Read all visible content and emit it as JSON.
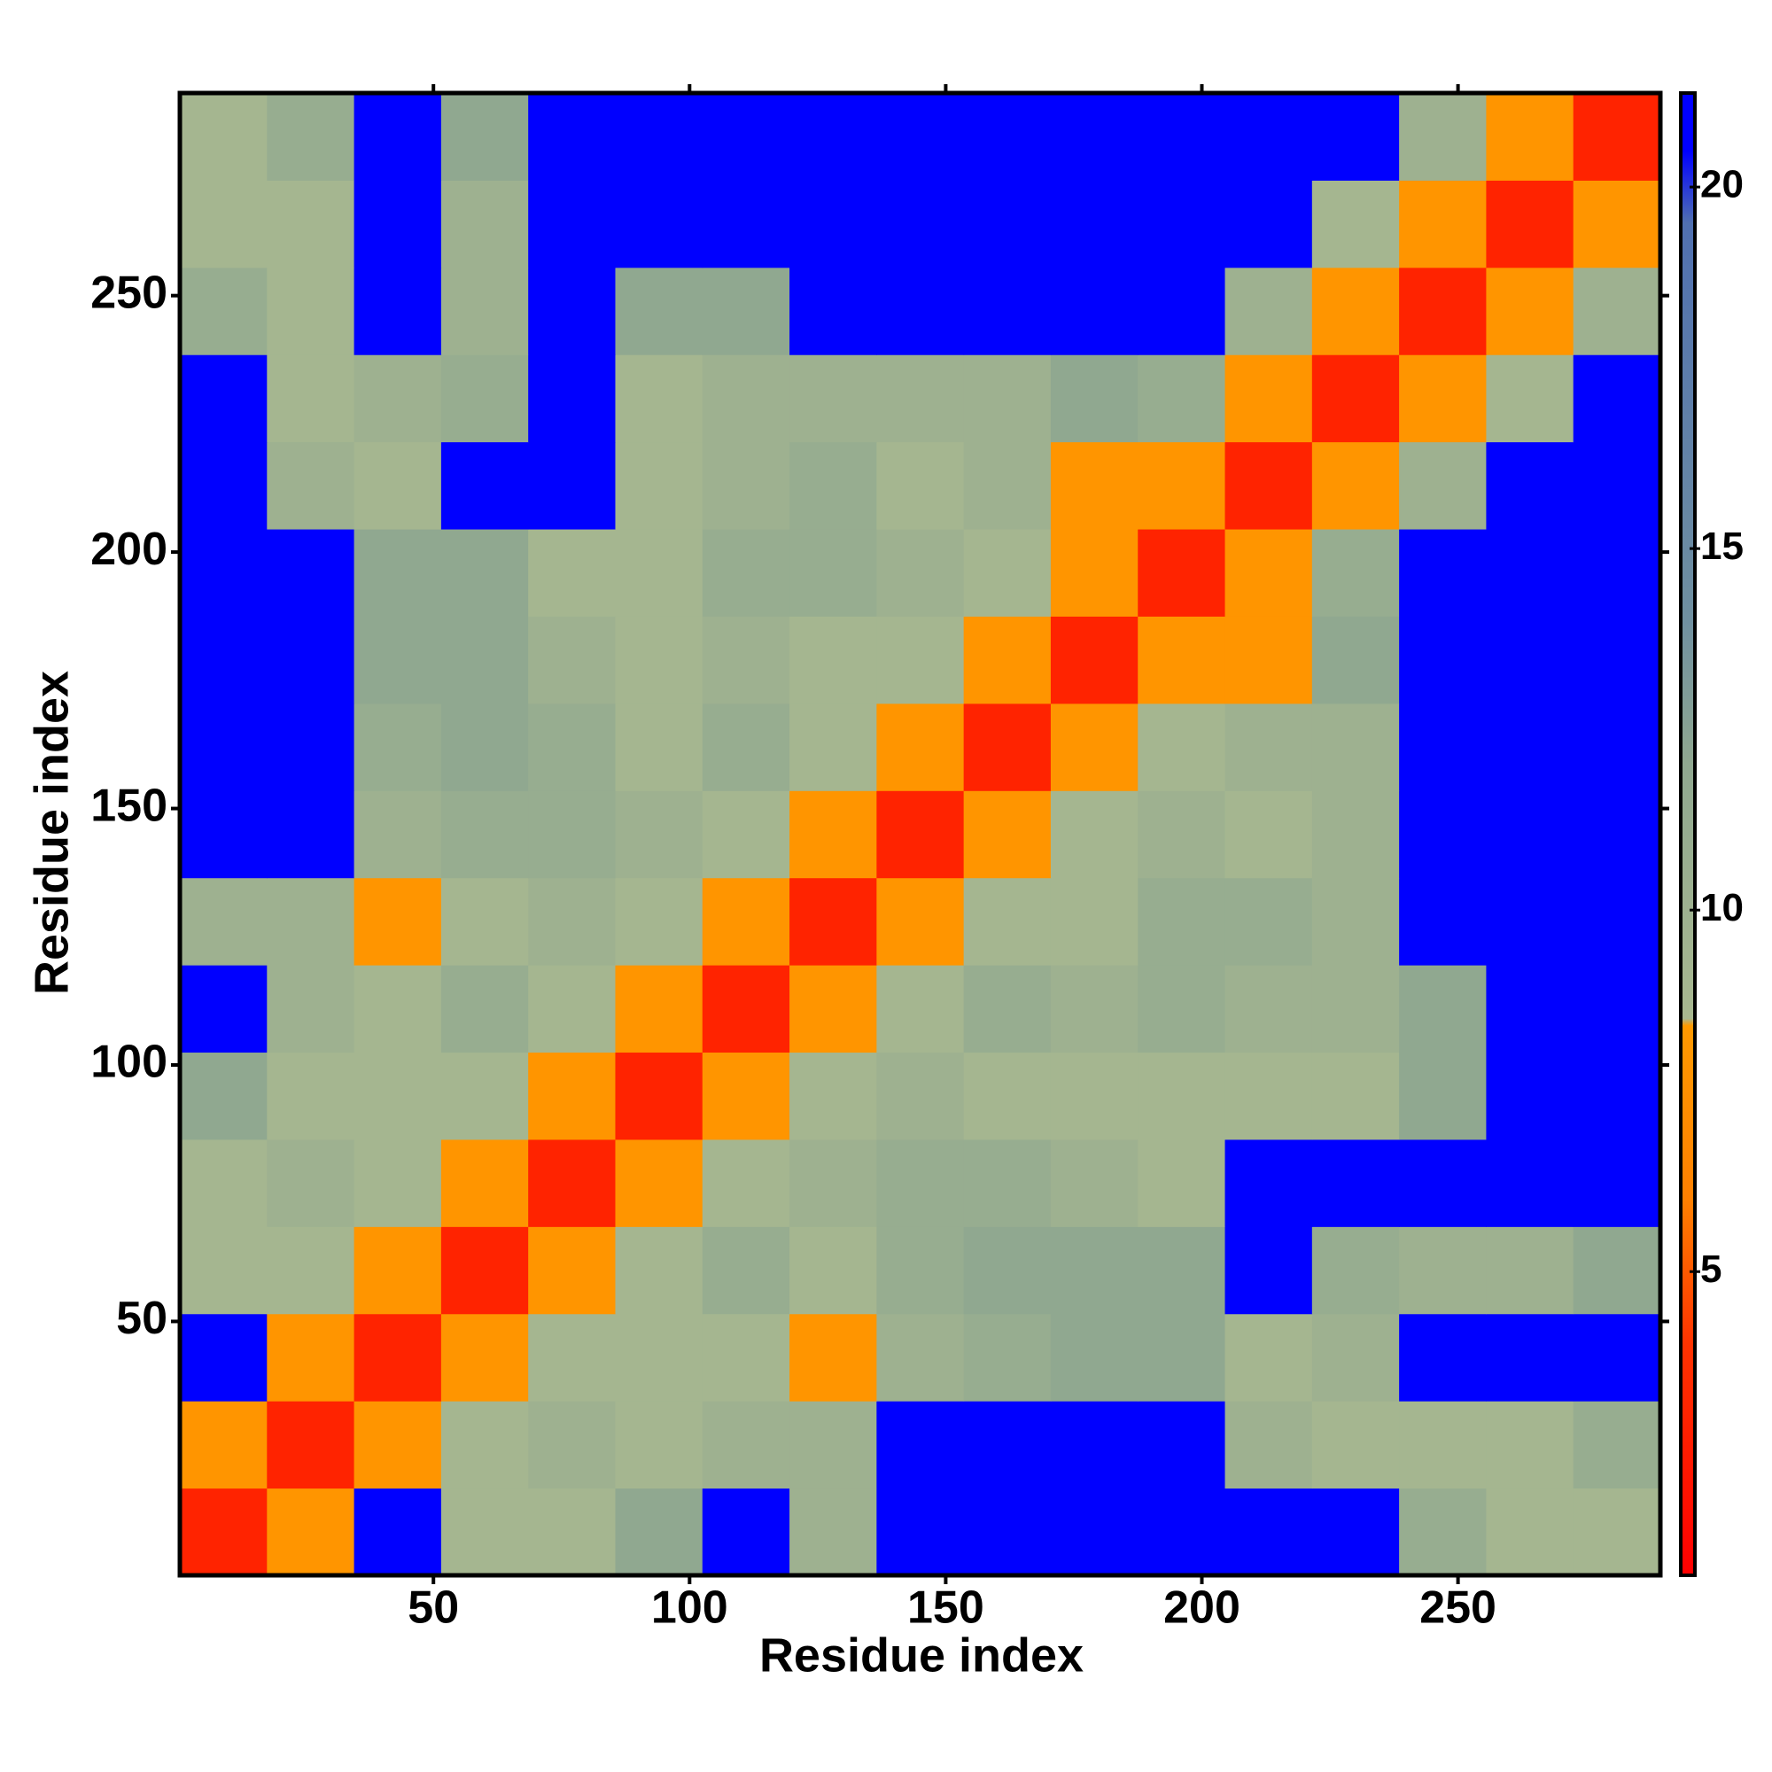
{
  "chart_data": {
    "type": "heatmap",
    "xlabel": "Residue index",
    "ylabel": "Residue index",
    "xlim": [
      0.5,
      289.5
    ],
    "ylim": [
      0.5,
      289.5
    ],
    "xticks": [
      50,
      100,
      150,
      200,
      250
    ],
    "yticks": [
      50,
      100,
      150,
      200,
      250
    ],
    "xbins": [
      0.5,
      17.5,
      34.5,
      51.5,
      68.5,
      85.5,
      102.5,
      119.5,
      136.5,
      153.5,
      170.5,
      187.5,
      204.5,
      221.5,
      238.5,
      255.5,
      272.5,
      289.5
    ],
    "ybins": [
      0.5,
      17.5,
      34.5,
      51.5,
      68.5,
      85.5,
      102.5,
      119.5,
      136.5,
      153.5,
      170.5,
      187.5,
      204.5,
      221.5,
      238.5,
      255.5,
      272.5,
      289.5
    ],
    "z": [
      [
        3,
        8,
        21,
        9,
        9,
        12,
        21,
        10,
        21,
        21,
        21,
        21,
        21,
        21,
        11,
        9,
        9
      ],
      [
        8,
        3,
        8,
        9,
        10,
        9,
        10,
        10,
        21,
        21,
        21,
        21,
        10,
        9,
        9,
        9,
        11
      ],
      [
        21,
        8,
        3,
        8,
        9,
        9,
        9,
        8,
        10,
        11,
        12,
        12,
        9,
        10,
        21,
        21,
        21
      ],
      [
        9,
        9,
        8,
        3,
        8,
        9,
        11,
        9,
        11,
        12,
        12,
        12,
        21,
        11,
        10,
        10,
        12
      ],
      [
        9,
        10,
        9,
        8,
        3,
        8,
        9,
        10,
        11,
        11,
        10,
        9,
        21,
        21,
        21,
        21,
        21
      ],
      [
        12,
        9,
        9,
        9,
        8,
        3,
        8,
        9,
        10,
        9,
        9,
        9,
        9,
        9,
        12,
        21,
        21
      ],
      [
        21,
        10,
        9,
        11,
        9,
        8,
        3,
        8,
        9,
        11,
        10,
        11,
        10,
        10,
        12,
        21,
        21
      ],
      [
        10,
        10,
        8,
        9,
        10,
        9,
        8,
        3,
        8,
        9,
        9,
        11,
        11,
        10,
        21,
        21,
        21
      ],
      [
        21,
        21,
        10,
        11,
        11,
        10,
        9,
        8,
        3,
        8,
        9,
        10,
        9,
        10,
        21,
        21,
        21
      ],
      [
        21,
        21,
        11,
        12,
        11,
        9,
        11,
        9,
        8,
        3,
        8,
        9,
        10,
        10,
        21,
        21,
        21
      ],
      [
        21,
        21,
        12,
        12,
        10,
        9,
        10,
        9,
        9,
        8,
        3,
        8,
        8,
        12,
        21,
        21,
        21
      ],
      [
        21,
        21,
        12,
        12,
        9,
        9,
        11,
        11,
        10,
        9,
        8,
        3,
        8,
        11,
        21,
        21,
        21
      ],
      [
        21,
        10,
        9,
        21,
        21,
        9,
        10,
        11,
        9,
        10,
        8,
        8,
        3,
        8,
        10,
        21,
        21
      ],
      [
        21,
        9,
        10,
        11,
        21,
        9,
        10,
        10,
        10,
        10,
        12,
        11,
        8,
        3,
        8,
        9,
        21
      ],
      [
        11,
        9,
        21,
        10,
        21,
        12,
        12,
        21,
        21,
        21,
        21,
        21,
        10,
        8,
        3,
        8,
        10
      ],
      [
        9,
        9,
        21,
        10,
        21,
        21,
        21,
        21,
        21,
        21,
        21,
        21,
        21,
        9,
        8,
        3,
        8
      ],
      [
        9,
        11,
        21,
        12,
        21,
        21,
        21,
        21,
        21,
        21,
        21,
        21,
        21,
        21,
        10,
        8,
        3
      ]
    ],
    "clim": [
      0.8,
      21.3
    ],
    "cticks": [
      5,
      10,
      15,
      20
    ],
    "colorscale": [
      [
        0.8,
        "#ff0000"
      ],
      [
        4,
        "#ff3300"
      ],
      [
        6,
        "#ff8000"
      ],
      [
        8.4,
        "#ff9900"
      ],
      [
        8.5,
        "#a8b890"
      ],
      [
        12,
        "#90a890"
      ],
      [
        14,
        "#7090a0"
      ],
      [
        19.5,
        "#5070b0"
      ],
      [
        20.5,
        "#0000ff"
      ],
      [
        21.3,
        "#0000ff"
      ]
    ]
  }
}
